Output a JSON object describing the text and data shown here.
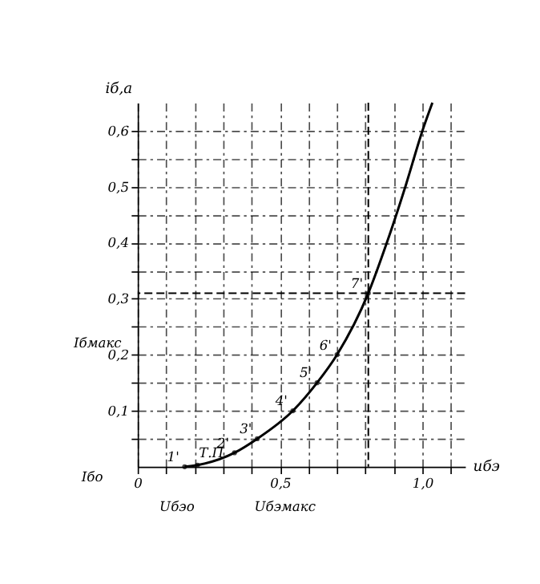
{
  "chart_data": {
    "type": "line",
    "xlabel": "uбэ",
    "ylabel": "iб,a",
    "x": [
      0.165,
      0.21,
      0.34,
      0.42,
      0.545,
      0.63,
      0.7,
      0.81,
      0.875,
      0.94,
      1.0,
      1.035
    ],
    "series": [
      {
        "color": "#000000",
        "values": [
          0,
          0.003,
          0.025,
          0.05,
          0.1,
          0.15,
          0.2,
          0.31,
          0.4,
          0.5,
          0.6,
          0.65
        ]
      }
    ],
    "xlim": [
      0,
      1.15
    ],
    "ylim": [
      0,
      0.65
    ],
    "xticks": [
      {
        "value": 0,
        "label": "0"
      },
      {
        "value": 0.1,
        "label": null
      },
      {
        "value": 0.2,
        "label": null
      },
      {
        "value": 0.3,
        "label": null
      },
      {
        "value": 0.4,
        "label": null
      },
      {
        "value": 0.5,
        "label": "0,5"
      },
      {
        "value": 0.6,
        "label": null
      },
      {
        "value": 0.7,
        "label": null
      },
      {
        "value": 0.8,
        "label": null
      },
      {
        "value": 0.9,
        "label": null
      },
      {
        "value": 1.0,
        "label": "1,0"
      },
      {
        "value": 1.1,
        "label": null
      }
    ],
    "yticks": [
      {
        "value": 0.05,
        "label": null
      },
      {
        "value": 0.1,
        "label": "0,1"
      },
      {
        "value": 0.15,
        "label": null
      },
      {
        "value": 0.2,
        "label": "0,2"
      },
      {
        "value": 0.25,
        "label": null
      },
      {
        "value": 0.3,
        "label": "0,3"
      },
      {
        "value": 0.35,
        "label": null
      },
      {
        "value": 0.4,
        "label": "0,4"
      },
      {
        "value": 0.45,
        "label": null
      },
      {
        "value": 0.5,
        "label": "0,5"
      },
      {
        "value": 0.55,
        "label": null
      },
      {
        "value": 0.6,
        "label": "0,6"
      }
    ],
    "grid": true,
    "marker": "none",
    "line_style": "solid",
    "ref_lines": [
      {
        "axis": "x",
        "value": 0.81,
        "line_style": "dashed",
        "color": "#000000"
      },
      {
        "axis": "y",
        "value": 0.31,
        "line_style": "dashed",
        "color": "#000000"
      }
    ],
    "annotations": [
      {
        "text": "1'",
        "x": 0.165,
        "y": 0
      },
      {
        "text": "Т.П",
        "x": 0.21,
        "y": 0.003
      },
      {
        "text": "2'",
        "x": 0.34,
        "y": 0.025
      },
      {
        "text": "3'",
        "x": 0.42,
        "y": 0.05
      },
      {
        "text": "4'",
        "x": 0.545,
        "y": 0.1
      },
      {
        "text": "5'",
        "x": 0.63,
        "y": 0.15
      },
      {
        "text": "6'",
        "x": 0.7,
        "y": 0.2
      },
      {
        "text": "7'",
        "x": 0.81,
        "y": 0.31
      },
      "Iбмакс",
      "Iбо",
      "Uбэо",
      "Uбэмакс"
    ]
  }
}
